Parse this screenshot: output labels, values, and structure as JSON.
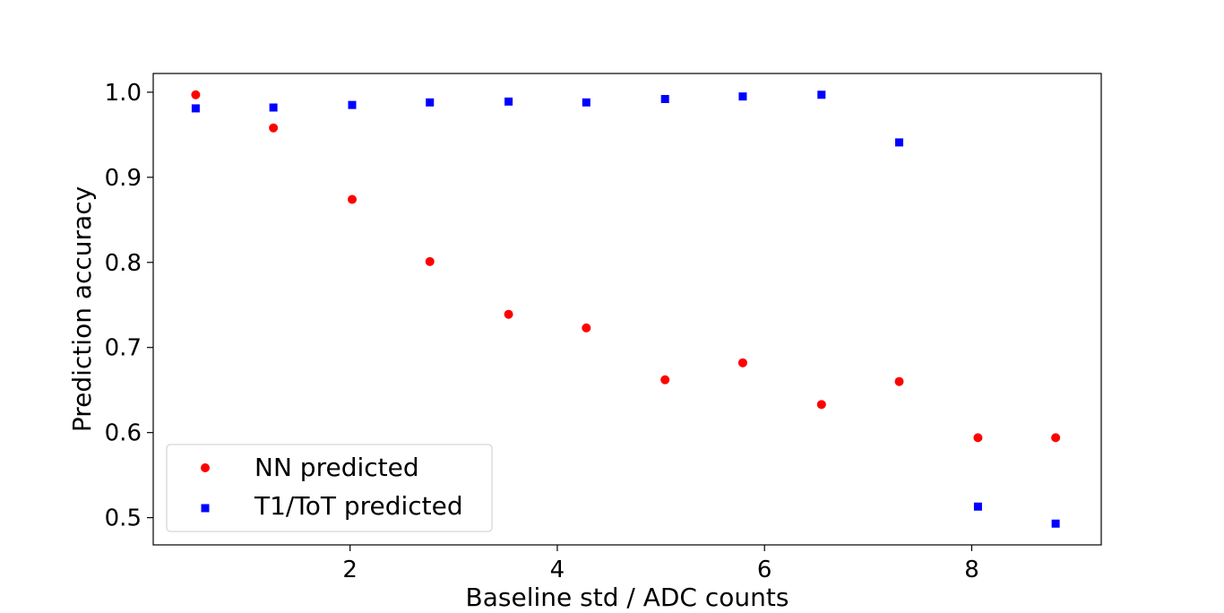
{
  "chart_data": {
    "type": "scatter",
    "title": "",
    "xlabel": "Baseline std / ADC counts",
    "ylabel": "Prediction accuracy",
    "xlim": [
      0.1,
      9.25
    ],
    "ylim": [
      0.468,
      1.022
    ],
    "xticks": [
      2,
      4,
      6,
      8
    ],
    "yticks": [
      0.5,
      0.6,
      0.7,
      0.8,
      0.9,
      1.0
    ],
    "xtick_labels": [
      "2",
      "4",
      "6",
      "8"
    ],
    "ytick_labels": [
      "0.5",
      "0.6",
      "0.7",
      "0.8",
      "0.9",
      "1.0"
    ],
    "grid": false,
    "legend_position": "lower-left",
    "x": [
      0.51,
      1.26,
      2.02,
      2.77,
      3.53,
      4.28,
      5.04,
      5.79,
      6.55,
      7.3,
      8.06,
      8.81
    ],
    "series": [
      {
        "name": "NN predicted",
        "marker": "circle",
        "color": "#ff0000",
        "values": [
          0.997,
          0.958,
          0.874,
          0.801,
          0.739,
          0.723,
          0.662,
          0.682,
          0.633,
          0.66,
          0.594,
          0.594
        ]
      },
      {
        "name": "T1/ToT predicted",
        "marker": "square",
        "color": "#0000ff",
        "values": [
          0.981,
          0.982,
          0.985,
          0.988,
          0.989,
          0.988,
          0.992,
          0.995,
          0.997,
          0.941,
          0.513,
          0.493
        ]
      }
    ]
  }
}
